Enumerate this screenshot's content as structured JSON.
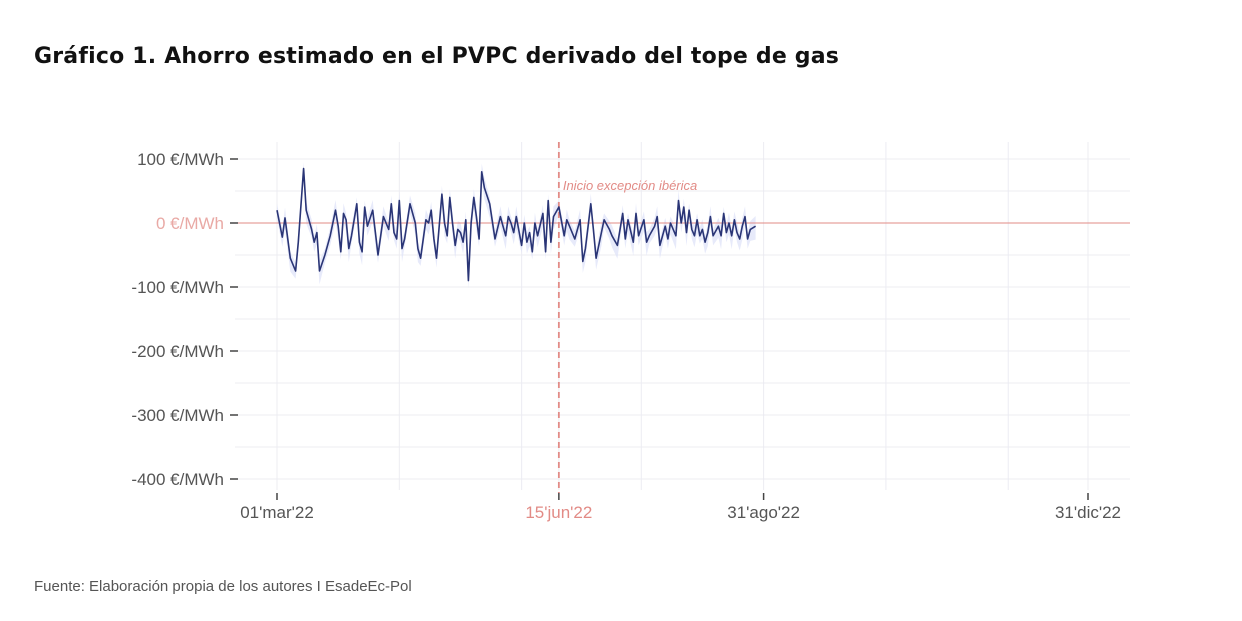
{
  "title": "Gráfico 1. Ahorro estimado en el PVPC derivado del tope de gas",
  "source": "Fuente: Elaboración propia de los autores I EsadeEc-Pol",
  "colors": {
    "line": "#2a3576",
    "band": "#dfe3f8",
    "reference": "#e28b86",
    "zero_label": "#e9a9a5",
    "grid": "#ececf2",
    "axis_text": "#555555"
  },
  "chart_data": {
    "type": "line",
    "title": "Gráfico 1. Ahorro estimado en el PVPC derivado del tope de gas",
    "xlabel": "",
    "ylabel": "",
    "ylim": [
      -400,
      100
    ],
    "yticks": [
      100,
      0,
      -100,
      -200,
      -300,
      -400
    ],
    "ytick_labels": [
      "100 €/MWh",
      "0 €/MWh",
      "-100 €/MWh",
      "-200 €/MWh",
      "-300 €/MWh",
      "-400 €/MWh"
    ],
    "x_range": [
      "2022-03-01",
      "2022-12-31"
    ],
    "xtick_labels": [
      "01'mar'22",
      "15'jun'22",
      "31'ago'22",
      "31'dic'22"
    ],
    "xtick_days": [
      0,
      106,
      183,
      305
    ],
    "reference_line": {
      "day": 106,
      "label": "Inicio excepción ibérica"
    },
    "series": [
      {
        "name": "Ahorro estimado",
        "points": [
          [
            0,
            20
          ],
          [
            2,
            -22
          ],
          [
            3,
            8
          ],
          [
            5,
            -55
          ],
          [
            7,
            -75
          ],
          [
            8,
            -30
          ],
          [
            10,
            85
          ],
          [
            11,
            20
          ],
          [
            13,
            -10
          ],
          [
            14,
            -30
          ],
          [
            15,
            -15
          ],
          [
            16,
            -75
          ],
          [
            18,
            -50
          ],
          [
            20,
            -20
          ],
          [
            22,
            20
          ],
          [
            23,
            -5
          ],
          [
            24,
            -45
          ],
          [
            25,
            15
          ],
          [
            26,
            5
          ],
          [
            27,
            -40
          ],
          [
            28,
            -20
          ],
          [
            30,
            30
          ],
          [
            31,
            -30
          ],
          [
            32,
            -45
          ],
          [
            33,
            25
          ],
          [
            34,
            -5
          ],
          [
            36,
            20
          ],
          [
            37,
            -15
          ],
          [
            38,
            -50
          ],
          [
            40,
            10
          ],
          [
            42,
            -10
          ],
          [
            43,
            30
          ],
          [
            44,
            -15
          ],
          [
            45,
            -25
          ],
          [
            46,
            35
          ],
          [
            47,
            -40
          ],
          [
            48,
            -25
          ],
          [
            50,
            30
          ],
          [
            52,
            0
          ],
          [
            53,
            -40
          ],
          [
            54,
            -55
          ],
          [
            56,
            5
          ],
          [
            57,
            0
          ],
          [
            58,
            20
          ],
          [
            59,
            -25
          ],
          [
            60,
            -55
          ],
          [
            62,
            45
          ],
          [
            63,
            0
          ],
          [
            64,
            -20
          ],
          [
            65,
            40
          ],
          [
            66,
            0
          ],
          [
            67,
            -35
          ],
          [
            68,
            -10
          ],
          [
            69,
            -15
          ],
          [
            70,
            -30
          ],
          [
            71,
            5
          ],
          [
            72,
            -90
          ],
          [
            73,
            0
          ],
          [
            74,
            40
          ],
          [
            75,
            10
          ],
          [
            76,
            -25
          ],
          [
            77,
            80
          ],
          [
            78,
            55
          ],
          [
            80,
            30
          ],
          [
            82,
            -25
          ],
          [
            84,
            10
          ],
          [
            85,
            -5
          ],
          [
            86,
            -20
          ],
          [
            87,
            10
          ],
          [
            88,
            0
          ],
          [
            89,
            -15
          ],
          [
            90,
            10
          ],
          [
            92,
            -35
          ],
          [
            93,
            0
          ],
          [
            94,
            -30
          ],
          [
            95,
            -15
          ],
          [
            96,
            -45
          ],
          [
            97,
            0
          ],
          [
            98,
            -20
          ],
          [
            100,
            15
          ],
          [
            101,
            -45
          ],
          [
            102,
            35
          ],
          [
            103,
            -30
          ],
          [
            104,
            10
          ],
          [
            106,
            25
          ],
          [
            108,
            -20
          ],
          [
            109,
            5
          ],
          [
            110,
            -5
          ],
          [
            112,
            -25
          ],
          [
            114,
            5
          ],
          [
            115,
            -60
          ],
          [
            116,
            -40
          ],
          [
            118,
            30
          ],
          [
            119,
            -10
          ],
          [
            120,
            -55
          ],
          [
            122,
            -15
          ],
          [
            123,
            5
          ],
          [
            125,
            -10
          ],
          [
            126,
            -20
          ],
          [
            128,
            -35
          ],
          [
            130,
            15
          ],
          [
            131,
            -25
          ],
          [
            132,
            5
          ],
          [
            134,
            -30
          ],
          [
            135,
            15
          ],
          [
            136,
            -20
          ],
          [
            138,
            5
          ],
          [
            139,
            -30
          ],
          [
            140,
            -20
          ],
          [
            142,
            -5
          ],
          [
            143,
            10
          ],
          [
            144,
            -35
          ],
          [
            146,
            -5
          ],
          [
            147,
            -25
          ],
          [
            148,
            0
          ],
          [
            150,
            -20
          ],
          [
            151,
            35
          ],
          [
            152,
            0
          ],
          [
            153,
            25
          ],
          [
            154,
            -15
          ],
          [
            155,
            20
          ],
          [
            156,
            -10
          ],
          [
            157,
            -20
          ],
          [
            158,
            5
          ],
          [
            159,
            -20
          ],
          [
            160,
            -10
          ],
          [
            161,
            -30
          ],
          [
            162,
            -15
          ],
          [
            163,
            10
          ],
          [
            164,
            -20
          ],
          [
            166,
            -5
          ],
          [
            167,
            -20
          ],
          [
            168,
            15
          ],
          [
            169,
            -15
          ],
          [
            170,
            0
          ],
          [
            171,
            -20
          ],
          [
            172,
            5
          ],
          [
            173,
            -15
          ],
          [
            174,
            -25
          ],
          [
            175,
            -5
          ],
          [
            176,
            10
          ],
          [
            177,
            -25
          ],
          [
            178,
            -10
          ],
          [
            180,
            -5
          ]
        ]
      }
    ]
  }
}
